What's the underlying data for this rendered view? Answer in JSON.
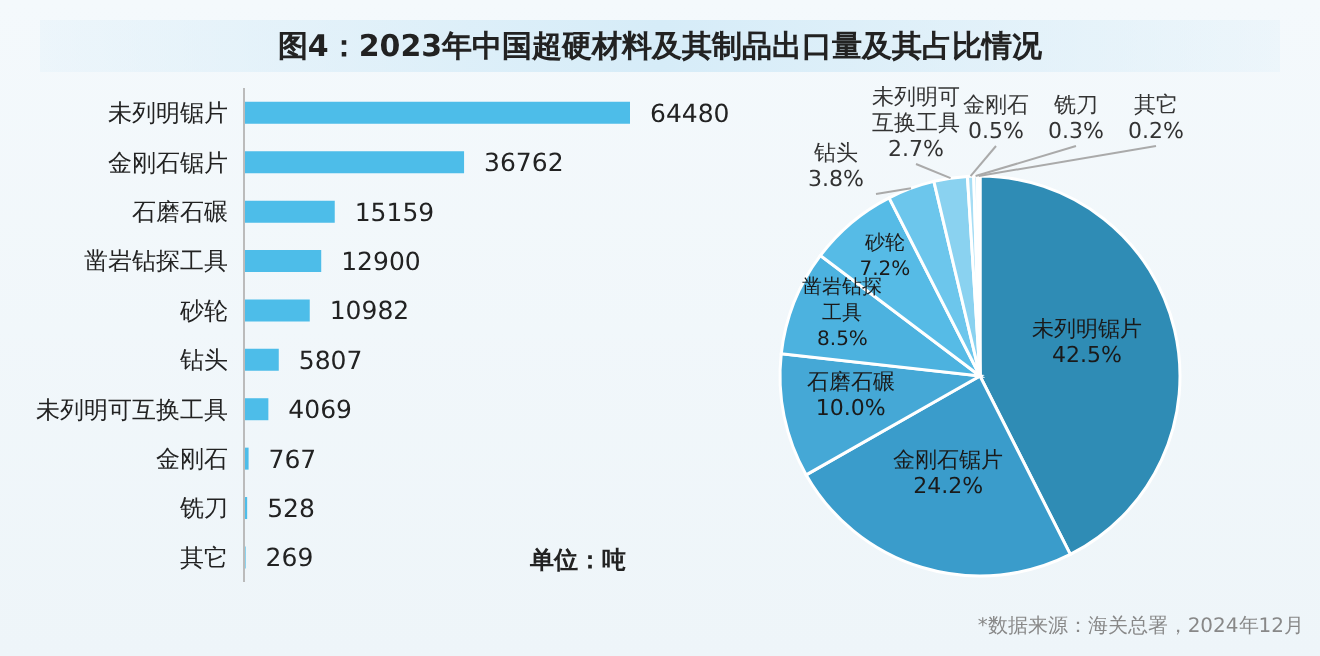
{
  "chart_data": [
    {
      "type": "bar",
      "orientation": "horizontal",
      "title": "图4：2023年中国超硬材料及其制品出口量及其占比情况",
      "categories": [
        "未列明锯片",
        "金刚石锯片",
        "石磨石碾",
        "凿岩钻探工具",
        "砂轮",
        "钻头",
        "未列明可互换工具",
        "金刚石",
        "铣刀",
        "其它"
      ],
      "values": [
        64480,
        36762,
        15159,
        12900,
        10982,
        5807,
        4069,
        767,
        528,
        269
      ],
      "color": "#4dbde9",
      "data_labels": true,
      "annotations": [
        "单位：吨"
      ]
    },
    {
      "type": "pie",
      "categories": [
        "未列明锯片",
        "金刚石锯片",
        "石磨石碾",
        "凿岩钻探工具",
        "砂轮",
        "钻头",
        "未列明可互换工具",
        "金刚石",
        "铣刀",
        "其它"
      ],
      "values": [
        42.5,
        24.2,
        10.0,
        8.5,
        7.2,
        3.8,
        2.7,
        0.5,
        0.3,
        0.2
      ],
      "colors": [
        "#2f8cb5",
        "#3a9ccb",
        "#45a8d6",
        "#4cb2df",
        "#56bbe6",
        "#6cc6ec",
        "#8ad2f0",
        "#a6ddf4",
        "#c0e7f7",
        "#d6effa"
      ],
      "value_labels": [
        "42.5%",
        "24.2%",
        "10.0%",
        "8.5%",
        "7.2%",
        "3.8%",
        "2.7%",
        "0.5%",
        "0.3%",
        "0.2%"
      ],
      "annotations": [
        "*数据来源：海关总署，2024年12月"
      ]
    }
  ]
}
